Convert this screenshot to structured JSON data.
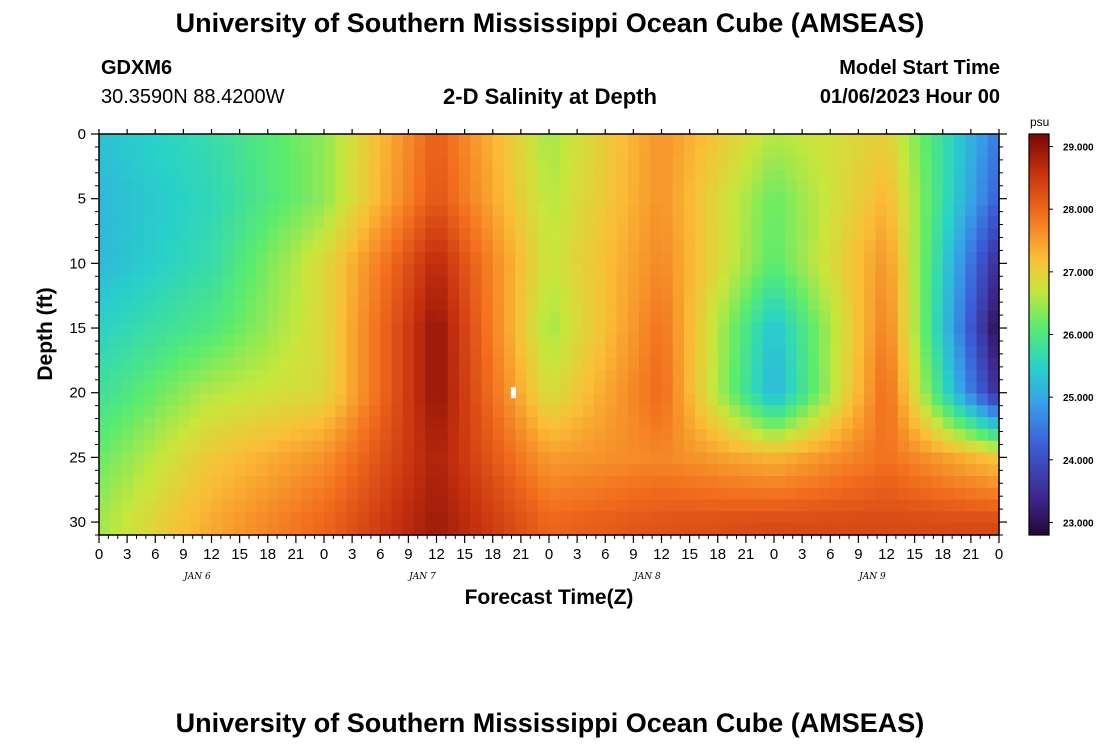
{
  "header": {
    "title": "University of Southern Mississippi Ocean Cube (AMSEAS)",
    "station": "GDXM6",
    "location": "30.3590N  88.4200W",
    "product": "2-D Salinity at Depth",
    "model_start_label": "Model Start Time",
    "model_start_value": "01/06/2023 Hour 00"
  },
  "footer": {
    "title": "University of Southern Mississippi Ocean Cube (AMSEAS)"
  },
  "chart_data": {
    "type": "heatmap",
    "xlabel": "Forecast Time(Z)",
    "ylabel": "Depth (ft)",
    "x_tick_labels": [
      "0",
      "3",
      "6",
      "9",
      "12",
      "15",
      "18",
      "21",
      "0",
      "3",
      "6",
      "9",
      "12",
      "15",
      "18",
      "21",
      "0",
      "3",
      "6",
      "9",
      "12",
      "15",
      "18",
      "21",
      "0",
      "3",
      "6",
      "9",
      "12",
      "15",
      "18",
      "21",
      "0"
    ],
    "x_range_hours": [
      0,
      96
    ],
    "day_labels": [
      {
        "label": "JAN 6",
        "hour": 10.5
      },
      {
        "label": "JAN 7",
        "hour": 34.5
      },
      {
        "label": "JAN 8",
        "hour": 58.5
      },
      {
        "label": "JAN 9",
        "hour": 82.5
      }
    ],
    "y_tick_labels": [
      "0",
      "5",
      "10",
      "15",
      "20",
      "25",
      "30"
    ],
    "y_ticks": [
      0,
      5,
      10,
      15,
      20,
      25,
      30
    ],
    "y_range_ft": [
      0,
      31
    ],
    "y_inverted": true,
    "colorbar": {
      "unit": "psu",
      "min": 22.8,
      "max": 29.2,
      "tick_values": [
        23,
        24,
        25,
        26,
        27,
        28,
        29
      ],
      "tick_labels": [
        "23.000",
        "24.000",
        "25.000",
        "26.000",
        "27.000",
        "28.000",
        "29.000"
      ],
      "colormap": "turbo-like (dark purple, blue, cyan, green, yellow, orange, dark red)"
    },
    "marker": {
      "hour": 44.2,
      "depth_ft": 20
    },
    "salinity_psu": {
      "hours": [
        0,
        12,
        24,
        36,
        48,
        60,
        72,
        84,
        96
      ],
      "depths_ft": [
        0,
        5,
        10,
        15,
        20,
        25,
        30
      ],
      "values": [
        [
          25.3,
          25.7,
          26.4,
          28.1,
          26.5,
          27.6,
          26.6,
          27.0,
          24.5
        ],
        [
          25.2,
          25.6,
          26.4,
          28.2,
          26.6,
          27.6,
          26.2,
          27.3,
          24.2
        ],
        [
          25.2,
          25.7,
          26.9,
          28.7,
          26.7,
          27.7,
          26.1,
          27.6,
          23.4
        ],
        [
          25.5,
          26.0,
          26.9,
          29.0,
          26.5,
          27.9,
          25.3,
          27.8,
          22.9
        ],
        [
          25.8,
          26.6,
          26.9,
          29.0,
          26.8,
          28.0,
          25.1,
          28.0,
          23.4
        ],
        [
          26.2,
          27.1,
          27.6,
          28.8,
          27.5,
          27.7,
          27.3,
          27.9,
          27.1
        ],
        [
          26.5,
          27.4,
          28.0,
          28.9,
          28.0,
          28.2,
          28.3,
          28.3,
          28.3
        ]
      ]
    }
  }
}
